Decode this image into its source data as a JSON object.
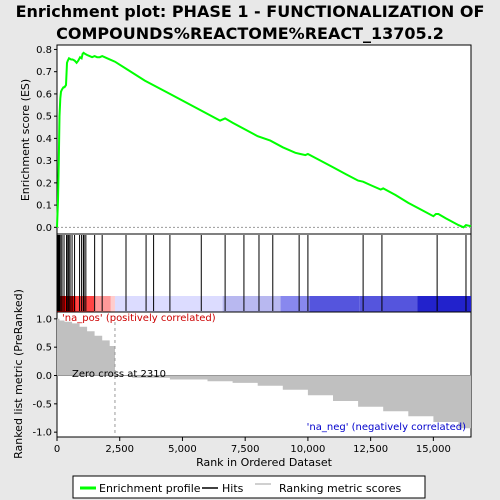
{
  "title_line1": "Enrichment plot: PHASE 1 - FUNCTIONALIZATION OF",
  "title_line2": "COMPOUNDS%REACTOME%REACT_13705.2",
  "chart_data": {
    "type": "line",
    "total_ranks": 16500,
    "zero_cross_rank": 2310,
    "es_panel": {
      "ylabel": "Enrichment score (ES)",
      "ylim": [
        -0.03,
        0.82
      ],
      "yticks": [
        0.0,
        0.1,
        0.2,
        0.3,
        0.4,
        0.5,
        0.6,
        0.7,
        0.8
      ],
      "series": [
        {
          "name": "Enrichment profile",
          "color": "#00ff00",
          "x": [
            0,
            40,
            70,
            100,
            130,
            160,
            200,
            260,
            300,
            360,
            400,
            430,
            480,
            560,
            620,
            700,
            780,
            850,
            920,
            980,
            1020,
            1060,
            1120,
            1200,
            1300,
            1400,
            1500,
            1600,
            1700,
            1800,
            1900,
            2000,
            2310,
            2800,
            3500,
            4500,
            5500,
            6500,
            6700,
            7000,
            7500,
            8000,
            8500,
            9000,
            9500,
            9700,
            9900,
            10000,
            10500,
            11000,
            11500,
            12000,
            12200,
            12500,
            12900,
            13000,
            13500,
            14000,
            14500,
            15000,
            15100,
            15200,
            15500,
            16000,
            16200,
            16300,
            16500
          ],
          "y": [
            0.0,
            0.12,
            0.3,
            0.5,
            0.58,
            0.61,
            0.62,
            0.63,
            0.63,
            0.64,
            0.74,
            0.75,
            0.76,
            0.755,
            0.755,
            0.75,
            0.74,
            0.75,
            0.765,
            0.76,
            0.78,
            0.785,
            0.78,
            0.775,
            0.77,
            0.765,
            0.77,
            0.765,
            0.765,
            0.77,
            0.765,
            0.76,
            0.745,
            0.71,
            0.66,
            0.6,
            0.54,
            0.48,
            0.49,
            0.47,
            0.44,
            0.41,
            0.39,
            0.36,
            0.335,
            0.33,
            0.325,
            0.33,
            0.3,
            0.27,
            0.24,
            0.21,
            0.205,
            0.19,
            0.17,
            0.175,
            0.145,
            0.11,
            0.08,
            0.05,
            0.06,
            0.06,
            0.04,
            0.01,
            0.0,
            0.01,
            0.005
          ]
        }
      ]
    },
    "hits_panel": {
      "hit_ranks": [
        20,
        60,
        100,
        150,
        200,
        280,
        380,
        430,
        470,
        520,
        600,
        700,
        900,
        980,
        1050,
        1080,
        1150,
        1500,
        1800,
        2750,
        3550,
        3850,
        4500,
        5750,
        6700,
        7450,
        8050,
        8600,
        9650,
        10000,
        12200,
        12950,
        15150,
        16300
      ],
      "band_colors": [
        "#dd0000",
        "#ff4444",
        "#ff9999",
        "#ffcccc",
        "#dcdcff",
        "#b8b8f0",
        "#8888ee",
        "#5555dd",
        "#2222cc"
      ]
    },
    "metric_panel": {
      "ylabel": "Ranked list metric (PreRanked)",
      "xlabel": "Rank in Ordered Dataset",
      "ylim": [
        -1.05,
        1.05
      ],
      "yticks": [
        -1.0,
        -0.5,
        0.0,
        0.5,
        1.0
      ],
      "xticks": [
        0,
        2500,
        5000,
        7500,
        10000,
        12500,
        15000
      ],
      "metric_x": [
        0,
        100,
        300,
        600,
        900,
        1200,
        1500,
        1800,
        2100,
        2310,
        3000,
        4500,
        6000,
        7000,
        8000,
        9000,
        10000,
        11000,
        12000,
        13000,
        14000,
        15000,
        16000,
        16500
      ],
      "metric_y": [
        1.0,
        0.97,
        0.95,
        0.92,
        0.86,
        0.78,
        0.7,
        0.62,
        0.52,
        0.0,
        -0.04,
        -0.07,
        -0.1,
        -0.13,
        -0.18,
        -0.25,
        -0.35,
        -0.45,
        -0.55,
        -0.63,
        -0.72,
        -0.82,
        -0.93,
        -1.0
      ],
      "pos_label": "'na_pos' (positively correlated)",
      "neg_label": "'na_neg' (negatively correlated)",
      "zero_cross_label": "Zero cross at 2310"
    }
  },
  "legend": {
    "items": [
      {
        "label": "Enrichment profile",
        "color": "#00ff00"
      },
      {
        "label": "Hits",
        "color": "#000000"
      },
      {
        "label": "Ranking metric scores",
        "color": "#c0c0c0"
      }
    ]
  }
}
